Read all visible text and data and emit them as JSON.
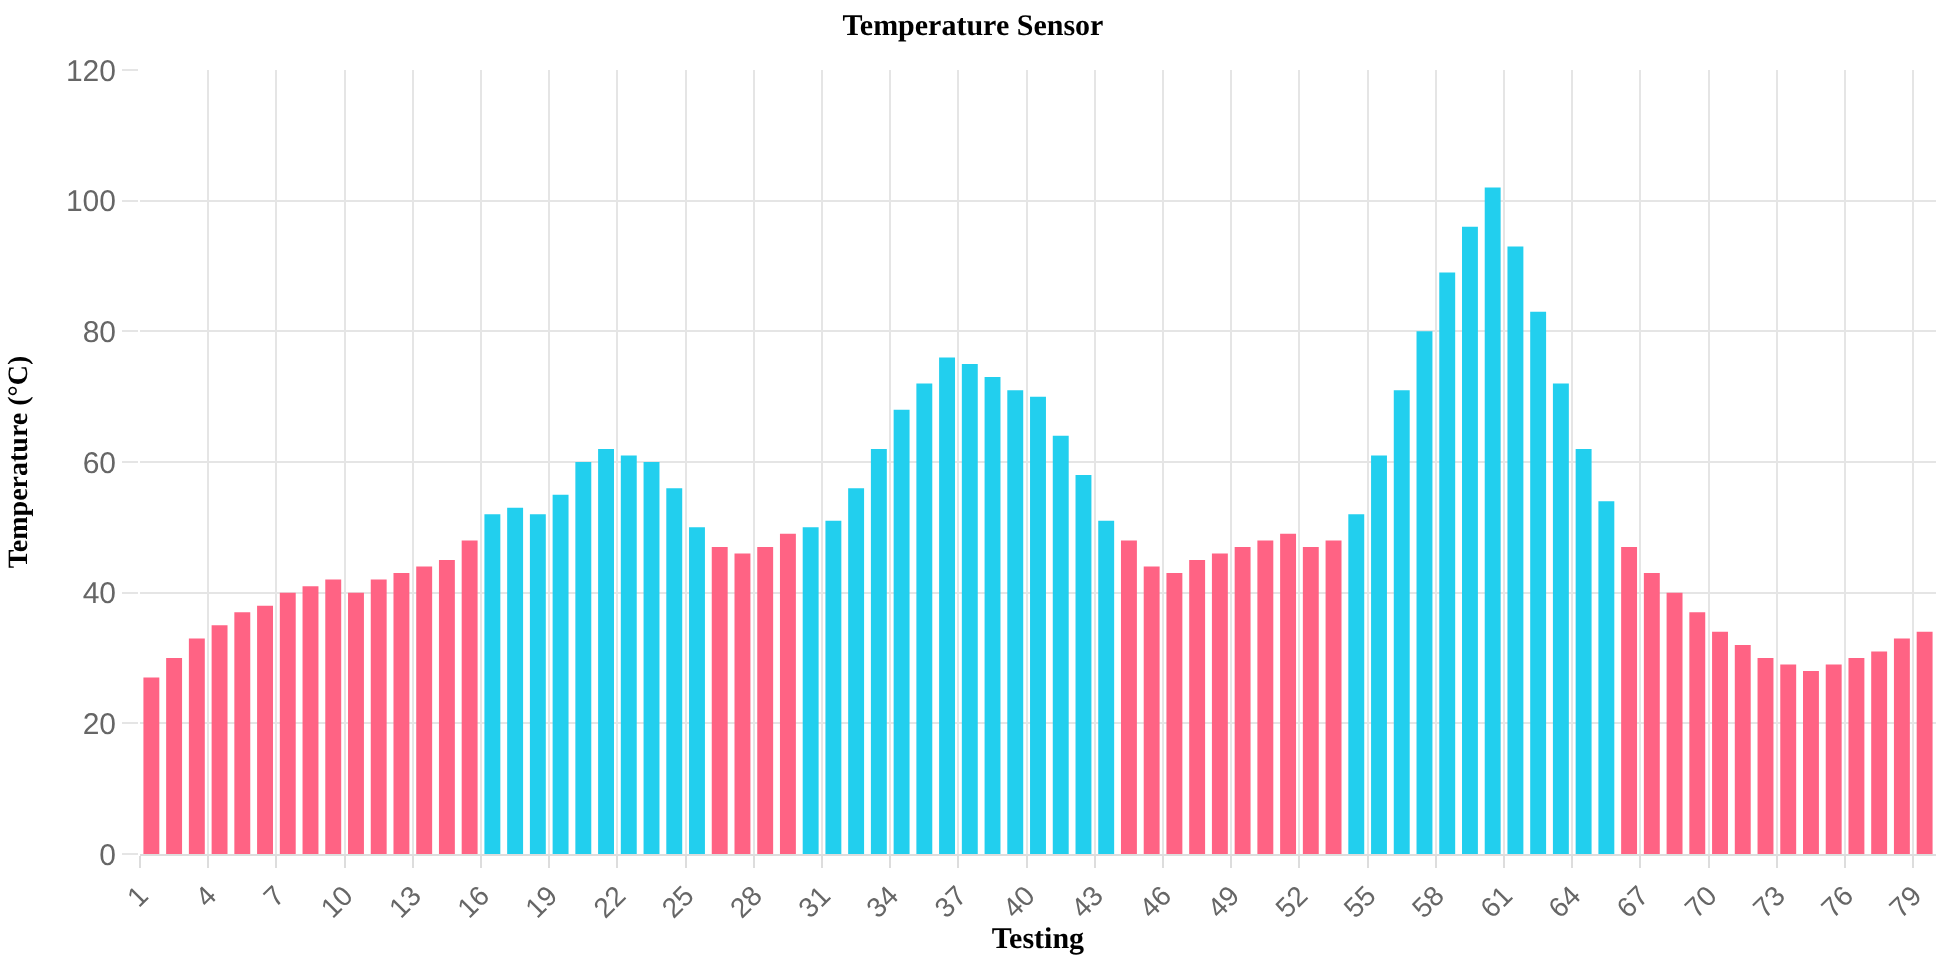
{
  "chart_data": {
    "type": "bar",
    "title": "Temperature Sensor",
    "xlabel": "Testing",
    "ylabel": "Temperature (°C)",
    "categories": [
      "1",
      null,
      null,
      "4",
      null,
      null,
      "7",
      null,
      null,
      "10",
      null,
      null,
      "13",
      null,
      null,
      "16",
      null,
      null,
      "19",
      null,
      null,
      "22",
      null,
      null,
      "25",
      null,
      null,
      "28",
      null,
      null,
      "31",
      null,
      null,
      "34",
      null,
      null,
      "37",
      null,
      null,
      "40",
      null,
      null,
      "43",
      null,
      null,
      "46",
      null,
      null,
      "49",
      null,
      null,
      "52",
      null,
      null,
      "55",
      null,
      null,
      "58",
      null,
      null,
      "61",
      null,
      null,
      "64",
      null,
      null,
      "67",
      null,
      null,
      "70",
      null,
      null,
      "73",
      null,
      null,
      "76",
      null,
      null,
      "79"
    ],
    "values": [
      27,
      30,
      33,
      35,
      37,
      38,
      40,
      41,
      42,
      40,
      42,
      43,
      44,
      45,
      48,
      52,
      53,
      52,
      55,
      60,
      62,
      61,
      60,
      56,
      50,
      47,
      46,
      47,
      49,
      50,
      51,
      56,
      62,
      68,
      72,
      76,
      75,
      73,
      71,
      70,
      64,
      58,
      51,
      48,
      44,
      43,
      45,
      46,
      47,
      48,
      49,
      47,
      48,
      52,
      61,
      71,
      80,
      89,
      96,
      102,
      93,
      83,
      72,
      62,
      54,
      47,
      43,
      40,
      37,
      34,
      32,
      30,
      29,
      28,
      29,
      30,
      31,
      33,
      34
    ],
    "colors": [
      "#ff6384",
      "#ff6384",
      "#ff6384",
      "#ff6384",
      "#ff6384",
      "#ff6384",
      "#ff6384",
      "#ff6384",
      "#ff6384",
      "#ff6384",
      "#ff6384",
      "#ff6384",
      "#ff6384",
      "#ff6384",
      "#ff6384",
      "#22cfee",
      "#22cfee",
      "#22cfee",
      "#22cfee",
      "#22cfee",
      "#22cfee",
      "#22cfee",
      "#22cfee",
      "#22cfee",
      "#22cfee",
      "#ff6384",
      "#ff6384",
      "#ff6384",
      "#ff6384",
      "#22cfee",
      "#22cfee",
      "#22cfee",
      "#22cfee",
      "#22cfee",
      "#22cfee",
      "#22cfee",
      "#22cfee",
      "#22cfee",
      "#22cfee",
      "#22cfee",
      "#22cfee",
      "#22cfee",
      "#22cfee",
      "#ff6384",
      "#ff6384",
      "#ff6384",
      "#ff6384",
      "#ff6384",
      "#ff6384",
      "#ff6384",
      "#ff6384",
      "#ff6384",
      "#ff6384",
      "#22cfee",
      "#22cfee",
      "#22cfee",
      "#22cfee",
      "#22cfee",
      "#22cfee",
      "#22cfee",
      "#22cfee",
      "#22cfee",
      "#22cfee",
      "#22cfee",
      "#22cfee",
      "#ff6384",
      "#ff6384",
      "#ff6384",
      "#ff6384",
      "#ff6384",
      "#ff6384",
      "#ff6384",
      "#ff6384",
      "#ff6384",
      "#ff6384",
      "#ff6384",
      "#ff6384",
      "#ff6384",
      "#ff6384"
    ],
    "ylim": [
      0,
      120
    ],
    "yticks": [
      0,
      20,
      40,
      60,
      80,
      100,
      120
    ],
    "grid": true
  }
}
